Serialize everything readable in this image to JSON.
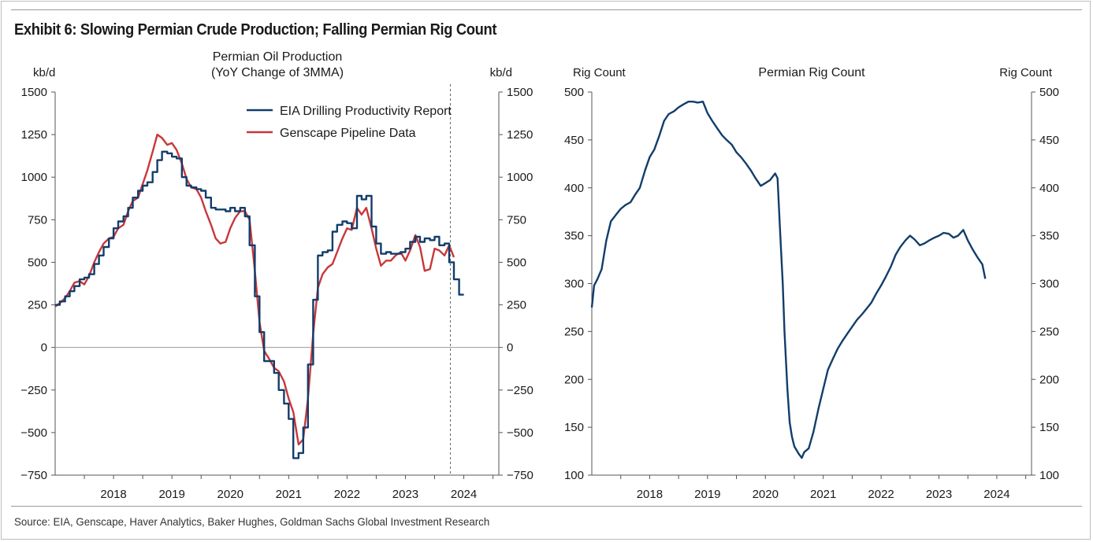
{
  "title": "Exhibit 6: Slowing Permian Crude Production; Falling Permian Rig Count",
  "source": "Source: EIA, Genscape, Haver Analytics, Baker Hughes, Goldman Sachs Global Investment Research",
  "chart_data": [
    {
      "type": "line",
      "title": "Permian Oil Production",
      "subtitle": "(YoY Change of 3MMA)",
      "ylabel_left": "kb/d",
      "ylabel_right": "kb/d",
      "ylim": [
        -750,
        1500
      ],
      "yticks": [
        1500,
        1250,
        1000,
        750,
        500,
        250,
        0,
        -250,
        -500,
        -750
      ],
      "xlim": [
        2017.0,
        2024.6
      ],
      "xticks": [
        "2018",
        "2019",
        "2020",
        "2021",
        "2022",
        "2023",
        "2024"
      ],
      "legend": "top-right",
      "vline_x": 2023.77,
      "zero_line": true,
      "colors": {
        "eia": "#123d6b",
        "genscape": "#c8373a"
      },
      "series": [
        {
          "name": "EIA Drilling Productivity Report",
          "step": true,
          "points": [
            [
              2017.0,
              250
            ],
            [
              2017.08,
              270
            ],
            [
              2017.17,
              300
            ],
            [
              2017.25,
              330
            ],
            [
              2017.33,
              360
            ],
            [
              2017.42,
              400
            ],
            [
              2017.5,
              410
            ],
            [
              2017.58,
              430
            ],
            [
              2017.67,
              490
            ],
            [
              2017.75,
              540
            ],
            [
              2017.83,
              590
            ],
            [
              2017.92,
              640
            ],
            [
              2018.0,
              700
            ],
            [
              2018.08,
              740
            ],
            [
              2018.17,
              770
            ],
            [
              2018.25,
              820
            ],
            [
              2018.33,
              880
            ],
            [
              2018.42,
              920
            ],
            [
              2018.5,
              950
            ],
            [
              2018.58,
              970
            ],
            [
              2018.67,
              1030
            ],
            [
              2018.75,
              1100
            ],
            [
              2018.83,
              1150
            ],
            [
              2018.92,
              1140
            ],
            [
              2019.0,
              1120
            ],
            [
              2019.08,
              1110
            ],
            [
              2019.17,
              1000
            ],
            [
              2019.25,
              950
            ],
            [
              2019.33,
              940
            ],
            [
              2019.42,
              930
            ],
            [
              2019.5,
              920
            ],
            [
              2019.58,
              880
            ],
            [
              2019.67,
              820
            ],
            [
              2019.75,
              810
            ],
            [
              2019.83,
              810
            ],
            [
              2019.92,
              800
            ],
            [
              2020.0,
              820
            ],
            [
              2020.08,
              800
            ],
            [
              2020.17,
              820
            ],
            [
              2020.25,
              770
            ],
            [
              2020.33,
              600
            ],
            [
              2020.42,
              300
            ],
            [
              2020.5,
              90
            ],
            [
              2020.58,
              -80
            ],
            [
              2020.67,
              -80
            ],
            [
              2020.75,
              -150
            ],
            [
              2020.83,
              -250
            ],
            [
              2020.92,
              -330
            ],
            [
              2021.0,
              -420
            ],
            [
              2021.08,
              -650
            ],
            [
              2021.17,
              -620
            ],
            [
              2021.25,
              -470
            ],
            [
              2021.33,
              -100
            ],
            [
              2021.42,
              280
            ],
            [
              2021.5,
              540
            ],
            [
              2021.58,
              560
            ],
            [
              2021.67,
              570
            ],
            [
              2021.75,
              680
            ],
            [
              2021.83,
              720
            ],
            [
              2021.92,
              740
            ],
            [
              2022.0,
              730
            ],
            [
              2022.08,
              700
            ],
            [
              2022.17,
              890
            ],
            [
              2022.25,
              870
            ],
            [
              2022.33,
              890
            ],
            [
              2022.42,
              710
            ],
            [
              2022.5,
              610
            ],
            [
              2022.58,
              550
            ],
            [
              2022.67,
              560
            ],
            [
              2022.75,
              550
            ],
            [
              2022.83,
              550
            ],
            [
              2022.92,
              560
            ],
            [
              2023.0,
              580
            ],
            [
              2023.08,
              620
            ],
            [
              2023.17,
              650
            ],
            [
              2023.25,
              620
            ],
            [
              2023.33,
              640
            ],
            [
              2023.42,
              630
            ],
            [
              2023.5,
              650
            ],
            [
              2023.58,
              600
            ],
            [
              2023.67,
              610
            ],
            [
              2023.75,
              500
            ],
            [
              2023.83,
              400
            ],
            [
              2023.92,
              310
            ],
            [
              2024.0,
              310
            ]
          ]
        },
        {
          "name": "Genscape Pipeline Data",
          "step": false,
          "points": [
            [
              2017.0,
              240
            ],
            [
              2017.08,
              260
            ],
            [
              2017.17,
              290
            ],
            [
              2017.25,
              330
            ],
            [
              2017.33,
              380
            ],
            [
              2017.42,
              390
            ],
            [
              2017.5,
              370
            ],
            [
              2017.58,
              420
            ],
            [
              2017.67,
              500
            ],
            [
              2017.75,
              560
            ],
            [
              2017.83,
              610
            ],
            [
              2017.92,
              640
            ],
            [
              2018.0,
              650
            ],
            [
              2018.08,
              700
            ],
            [
              2018.17,
              720
            ],
            [
              2018.25,
              800
            ],
            [
              2018.33,
              860
            ],
            [
              2018.42,
              880
            ],
            [
              2018.5,
              960
            ],
            [
              2018.58,
              1040
            ],
            [
              2018.67,
              1150
            ],
            [
              2018.75,
              1250
            ],
            [
              2018.83,
              1230
            ],
            [
              2018.92,
              1190
            ],
            [
              2019.0,
              1200
            ],
            [
              2019.08,
              1160
            ],
            [
              2019.17,
              1080
            ],
            [
              2019.25,
              990
            ],
            [
              2019.33,
              940
            ],
            [
              2019.42,
              930
            ],
            [
              2019.5,
              880
            ],
            [
              2019.58,
              800
            ],
            [
              2019.67,
              720
            ],
            [
              2019.75,
              640
            ],
            [
              2019.83,
              610
            ],
            [
              2019.92,
              620
            ],
            [
              2020.0,
              700
            ],
            [
              2020.08,
              760
            ],
            [
              2020.17,
              800
            ],
            [
              2020.25,
              800
            ],
            [
              2020.33,
              750
            ],
            [
              2020.42,
              450
            ],
            [
              2020.5,
              150
            ],
            [
              2020.58,
              -20
            ],
            [
              2020.67,
              -70
            ],
            [
              2020.75,
              -120
            ],
            [
              2020.83,
              -140
            ],
            [
              2020.92,
              -200
            ],
            [
              2021.0,
              -300
            ],
            [
              2021.08,
              -380
            ],
            [
              2021.17,
              -570
            ],
            [
              2021.25,
              -540
            ],
            [
              2021.33,
              -300
            ],
            [
              2021.42,
              80
            ],
            [
              2021.5,
              350
            ],
            [
              2021.58,
              430
            ],
            [
              2021.67,
              470
            ],
            [
              2021.75,
              490
            ],
            [
              2021.83,
              560
            ],
            [
              2021.92,
              640
            ],
            [
              2022.0,
              700
            ],
            [
              2022.08,
              690
            ],
            [
              2022.17,
              820
            ],
            [
              2022.25,
              780
            ],
            [
              2022.33,
              820
            ],
            [
              2022.42,
              700
            ],
            [
              2022.5,
              580
            ],
            [
              2022.58,
              480
            ],
            [
              2022.67,
              510
            ],
            [
              2022.75,
              510
            ],
            [
              2022.83,
              540
            ],
            [
              2022.92,
              560
            ],
            [
              2023.0,
              510
            ],
            [
              2023.08,
              570
            ],
            [
              2023.17,
              660
            ],
            [
              2023.25,
              590
            ],
            [
              2023.33,
              450
            ],
            [
              2023.42,
              460
            ],
            [
              2023.5,
              580
            ],
            [
              2023.58,
              570
            ],
            [
              2023.67,
              540
            ],
            [
              2023.75,
              600
            ],
            [
              2023.83,
              530
            ]
          ]
        }
      ]
    },
    {
      "type": "line",
      "title": "Permian Rig Count",
      "ylabel_left": "Rig Count",
      "ylabel_right": "Rig Count",
      "ylim": [
        100,
        500
      ],
      "yticks": [
        500,
        450,
        400,
        350,
        300,
        250,
        200,
        150,
        100
      ],
      "xlim": [
        2017.0,
        2024.6
      ],
      "xticks": [
        "2018",
        "2019",
        "2020",
        "2021",
        "2022",
        "2023",
        "2024"
      ],
      "colors": {
        "rigs": "#123d6b"
      },
      "series": [
        {
          "name": "",
          "points": [
            [
              2017.0,
              275
            ],
            [
              2017.04,
              298
            ],
            [
              2017.1,
              305
            ],
            [
              2017.17,
              315
            ],
            [
              2017.25,
              345
            ],
            [
              2017.33,
              365
            ],
            [
              2017.42,
              372
            ],
            [
              2017.5,
              378
            ],
            [
              2017.58,
              382
            ],
            [
              2017.67,
              385
            ],
            [
              2017.75,
              393
            ],
            [
              2017.83,
              400
            ],
            [
              2017.92,
              418
            ],
            [
              2018.0,
              432
            ],
            [
              2018.08,
              440
            ],
            [
              2018.17,
              455
            ],
            [
              2018.25,
              470
            ],
            [
              2018.33,
              477
            ],
            [
              2018.42,
              480
            ],
            [
              2018.5,
              484
            ],
            [
              2018.58,
              487
            ],
            [
              2018.67,
              490
            ],
            [
              2018.75,
              490
            ],
            [
              2018.83,
              489
            ],
            [
              2018.92,
              490
            ],
            [
              2019.0,
              478
            ],
            [
              2019.08,
              470
            ],
            [
              2019.17,
              462
            ],
            [
              2019.25,
              455
            ],
            [
              2019.33,
              450
            ],
            [
              2019.42,
              445
            ],
            [
              2019.5,
              437
            ],
            [
              2019.58,
              432
            ],
            [
              2019.67,
              425
            ],
            [
              2019.75,
              418
            ],
            [
              2019.83,
              410
            ],
            [
              2019.92,
              402
            ],
            [
              2020.0,
              405
            ],
            [
              2020.08,
              408
            ],
            [
              2020.17,
              415
            ],
            [
              2020.21,
              410
            ],
            [
              2020.25,
              360
            ],
            [
              2020.3,
              300
            ],
            [
              2020.33,
              250
            ],
            [
              2020.38,
              190
            ],
            [
              2020.42,
              155
            ],
            [
              2020.46,
              140
            ],
            [
              2020.5,
              130
            ],
            [
              2020.58,
              122
            ],
            [
              2020.63,
              118
            ],
            [
              2020.67,
              124
            ],
            [
              2020.75,
              128
            ],
            [
              2020.83,
              145
            ],
            [
              2020.92,
              170
            ],
            [
              2021.0,
              190
            ],
            [
              2021.08,
              210
            ],
            [
              2021.17,
              222
            ],
            [
              2021.25,
              232
            ],
            [
              2021.33,
              240
            ],
            [
              2021.42,
              248
            ],
            [
              2021.5,
              255
            ],
            [
              2021.58,
              262
            ],
            [
              2021.67,
              268
            ],
            [
              2021.75,
              274
            ],
            [
              2021.83,
              280
            ],
            [
              2021.92,
              290
            ],
            [
              2022.0,
              298
            ],
            [
              2022.08,
              307
            ],
            [
              2022.17,
              318
            ],
            [
              2022.25,
              330
            ],
            [
              2022.33,
              338
            ],
            [
              2022.42,
              345
            ],
            [
              2022.5,
              350
            ],
            [
              2022.58,
              346
            ],
            [
              2022.67,
              340
            ],
            [
              2022.75,
              342
            ],
            [
              2022.83,
              345
            ],
            [
              2022.92,
              348
            ],
            [
              2023.0,
              350
            ],
            [
              2023.08,
              353
            ],
            [
              2023.17,
              352
            ],
            [
              2023.25,
              348
            ],
            [
              2023.33,
              350
            ],
            [
              2023.42,
              356
            ],
            [
              2023.5,
              345
            ],
            [
              2023.58,
              336
            ],
            [
              2023.67,
              327
            ],
            [
              2023.75,
              320
            ],
            [
              2023.8,
              305
            ]
          ]
        }
      ]
    }
  ]
}
